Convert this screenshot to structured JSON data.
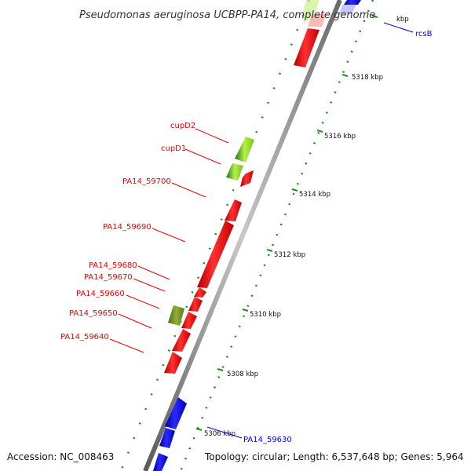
{
  "title": "Pseudomonas aeruginosa UCBPP-PA14, complete genome",
  "accession": "Accession: NC_008463",
  "topology": "Topology: circular; Length: 6,537,648 bp; Genes: 5,964",
  "ticks": [
    "kbp",
    "5318 kbp",
    "5316 kbp",
    "5314 kbp",
    "5312 kbp",
    "5310 kbp",
    "5308 kbp",
    "5306 kbp"
  ],
  "gene_labels": {
    "rcsB": "rcsB",
    "cupD2": "cupD2",
    "cupD1": "cupD1",
    "pa14_59700": "PA14_59700",
    "pa14_59690": "PA14_59690",
    "pa14_59680": "PA14_59680",
    "pa14_59670": "PA14_59670",
    "pa14_59660": "PA14_59660",
    "pa14_59650": "PA14_59650",
    "pa14_59640": "PA14_59640",
    "pa14_59630": "PA14_59630"
  },
  "colors": {
    "forward_strand": "#0000ee",
    "reverse_strand": "#ee0000",
    "cup_genes": "#99dd22",
    "cup_genes_dark": "#2e8b2e",
    "olive_gene": "#6b8e23",
    "backbone": "#808080",
    "dots": "#228b22"
  }
}
